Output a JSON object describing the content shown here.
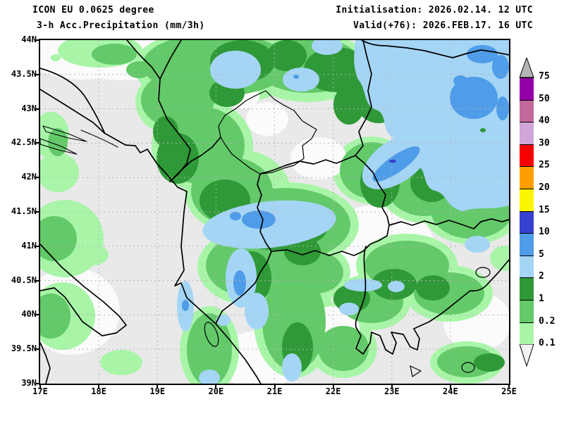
{
  "header": {
    "model": "ICON EU 0.0625 degree",
    "parameter": "3-h Acc.Precipitation (mm/3h)",
    "initialisation": "Initialisation: 2026.02.14. 12 UTC",
    "valid": "Valid(+76): 2026.FEB.17. 16 UTC"
  },
  "axes": {
    "lat_labels": [
      "44N",
      "43.5N",
      "43N",
      "42.5N",
      "42N",
      "41.5N",
      "41N",
      "40.5N",
      "40N",
      "39.5N",
      "39N"
    ],
    "lon_labels": [
      "17E",
      "18E",
      "19E",
      "20E",
      "21E",
      "22E",
      "23E",
      "24E",
      "25E"
    ]
  },
  "legend": {
    "boundary_labels": [
      "75",
      "50",
      "40",
      "30",
      "25",
      "20",
      "15",
      "10",
      "5",
      "2",
      "1",
      "0.2",
      "0.1"
    ],
    "band_colors_top_to_bottom": [
      "#9400a8",
      "#c4699c",
      "#cfa6d7",
      "#f80000",
      "#ff9e00",
      "#fcf500",
      "#3642cf",
      "#4f9ce8",
      "#a5d5f5",
      "#2f9937",
      "#63c969",
      "#a8f5a8"
    ],
    "overflow_arrow_color": "#b6b6b6",
    "underflow_arrow_color": "#f2f2f2"
  },
  "map_colors": {
    "background": "#e9e9e9",
    "trace_white": "#fbfbfb",
    "gridline": "#b4b4b4",
    "border_line": "#000000",
    "precip_light_green": "#a8f5a8",
    "precip_medium_green": "#63c969",
    "precip_dark_green": "#2f9937",
    "precip_light_blue": "#a5d5f5",
    "precip_medium_blue": "#4f9ce8",
    "precip_dark_blue": "#3642cf"
  }
}
